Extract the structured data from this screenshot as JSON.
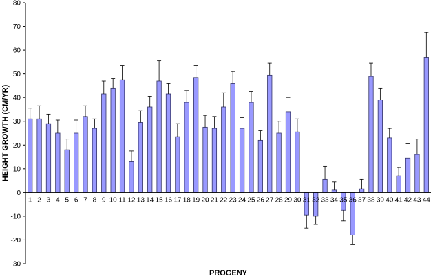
{
  "chart_data": {
    "type": "bar",
    "xlabel": "PROGENY",
    "ylabel": "HEIGHT GROWTH (CM/YR)",
    "ylim": [
      -30,
      80
    ],
    "yticks": [
      -30,
      -20,
      -10,
      0,
      10,
      20,
      30,
      40,
      50,
      60,
      70,
      80
    ],
    "grid": false,
    "error_bars": true,
    "colors": {
      "bar_fill": "#9999ff",
      "bar_stroke": "#333366",
      "axis": "#000000",
      "error_bar": "#000000"
    },
    "categories": [
      "1",
      "2",
      "3",
      "4",
      "5",
      "6",
      "7",
      "8",
      "9",
      "10",
      "11",
      "12",
      "13",
      "14",
      "15",
      "16",
      "17",
      "18",
      "19",
      "20",
      "21",
      "22",
      "23",
      "24",
      "25",
      "26",
      "27",
      "28",
      "29",
      "30",
      "31",
      "32",
      "33",
      "34",
      "35",
      "36",
      "37",
      "38",
      "39",
      "40",
      "41",
      "42",
      "43",
      "44"
    ],
    "values": [
      31,
      31,
      29,
      25,
      18,
      25,
      32,
      27,
      41.5,
      44,
      47.5,
      13,
      29.5,
      36,
      47,
      41.5,
      23.5,
      38,
      48.5,
      27.5,
      27,
      36,
      46,
      27,
      38,
      22,
      49.5,
      25,
      34,
      25.5,
      -9.5,
      -10,
      5.5,
      1,
      -7.5,
      -18,
      1.5,
      49,
      39,
      23,
      7,
      14.5,
      16,
      57
    ],
    "errors": [
      4.5,
      5.5,
      4,
      5.5,
      4.5,
      5.5,
      4.5,
      4,
      5.5,
      4,
      6,
      4.5,
      5,
      4.5,
      8.5,
      4.5,
      5.5,
      5,
      5,
      5,
      5,
      6,
      5,
      4.5,
      4.5,
      4,
      5,
      5,
      6,
      5.5,
      5.5,
      3.5,
      5.5,
      3.5,
      4.5,
      4,
      4,
      5.5,
      5,
      4,
      3.5,
      6,
      6.5,
      10.5
    ]
  }
}
